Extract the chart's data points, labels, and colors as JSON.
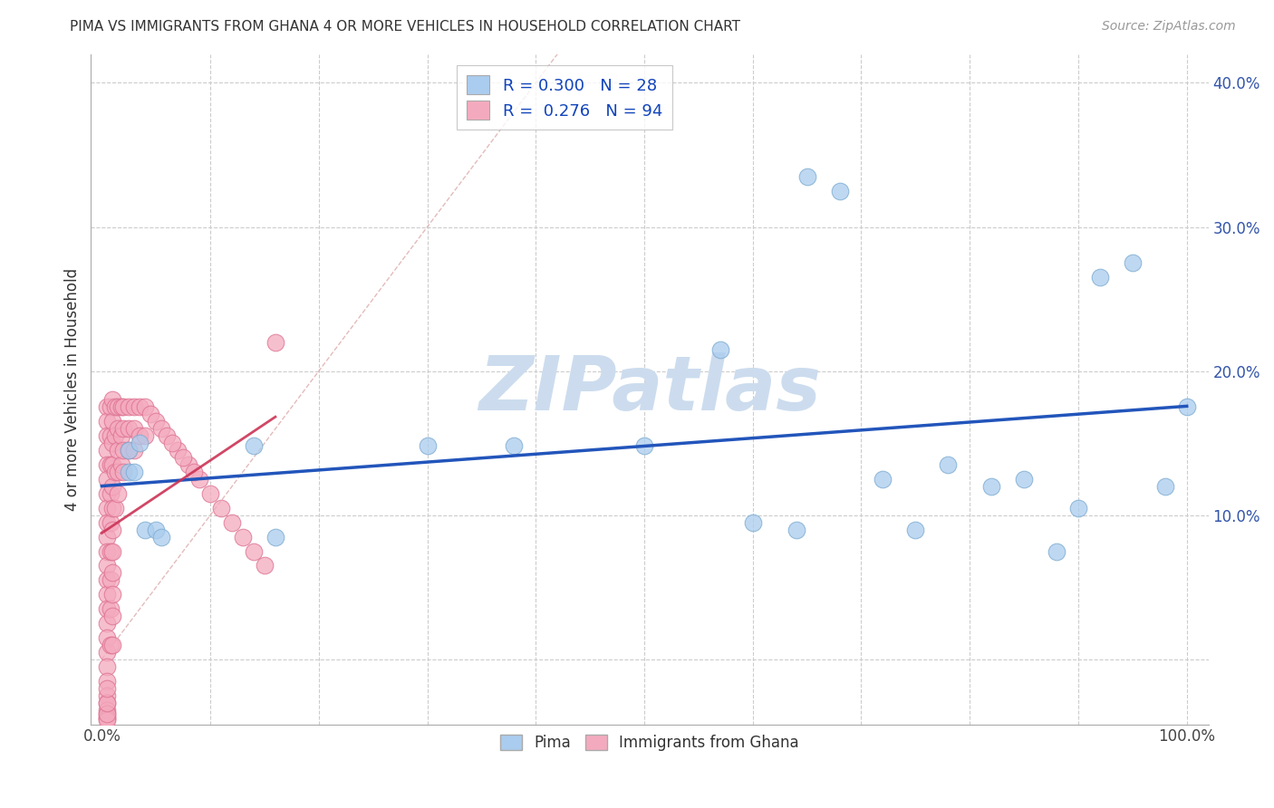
{
  "title": "PIMA VS IMMIGRANTS FROM GHANA 4 OR MORE VEHICLES IN HOUSEHOLD CORRELATION CHART",
  "source": "Source: ZipAtlas.com",
  "ylabel": "4 or more Vehicles in Household",
  "xlim": [
    -0.01,
    1.02
  ],
  "ylim": [
    -0.045,
    0.42
  ],
  "legend_R1": "0.300",
  "legend_N1": "28",
  "legend_R2": "0.276",
  "legend_N2": "94",
  "watermark": "ZIPatlas",
  "watermark_color": "#ccdcee",
  "pima_color": "#aaccee",
  "pima_edge_color": "#7aaad0",
  "ghana_color": "#f4aabe",
  "ghana_edge_color": "#dd7090",
  "trend_pima_color": "#2255bb",
  "trend_ghana_color": "#cc3355",
  "ref_line_color": "#ccaaaa",
  "background_color": "#ffffff",
  "grid_color": "#cccccc",
  "pima_x": [
    0.025,
    0.025,
    0.03,
    0.035,
    0.04,
    0.05,
    0.055,
    0.14,
    0.16,
    0.38,
    0.57,
    0.6,
    0.64,
    0.65,
    0.68,
    0.72,
    0.75,
    0.78,
    0.82,
    0.85,
    0.88,
    0.9,
    0.92,
    0.95,
    0.98,
    1.0,
    0.5,
    0.3
  ],
  "pima_y": [
    0.145,
    0.13,
    0.13,
    0.15,
    0.09,
    0.09,
    0.085,
    0.148,
    0.085,
    0.148,
    0.215,
    0.095,
    0.09,
    0.335,
    0.325,
    0.125,
    0.09,
    0.135,
    0.12,
    0.125,
    0.075,
    0.105,
    0.265,
    0.275,
    0.12,
    0.175,
    0.148,
    0.148
  ],
  "ghana_x": [
    0.005,
    0.005,
    0.005,
    0.005,
    0.005,
    0.005,
    0.005,
    0.005,
    0.005,
    0.005,
    0.005,
    0.005,
    0.005,
    0.005,
    0.005,
    0.005,
    0.005,
    0.005,
    0.005,
    0.005,
    0.005,
    0.005,
    0.005,
    0.005,
    0.005,
    0.005,
    0.005,
    0.005,
    0.005,
    0.005,
    0.008,
    0.008,
    0.008,
    0.008,
    0.008,
    0.008,
    0.008,
    0.008,
    0.008,
    0.01,
    0.01,
    0.01,
    0.01,
    0.01,
    0.01,
    0.01,
    0.01,
    0.01,
    0.01,
    0.01,
    0.01,
    0.012,
    0.012,
    0.012,
    0.012,
    0.015,
    0.015,
    0.015,
    0.015,
    0.015,
    0.018,
    0.018,
    0.018,
    0.02,
    0.02,
    0.02,
    0.02,
    0.025,
    0.025,
    0.025,
    0.03,
    0.03,
    0.03,
    0.035,
    0.035,
    0.04,
    0.04,
    0.045,
    0.05,
    0.055,
    0.06,
    0.07,
    0.08,
    0.09,
    0.1,
    0.11,
    0.12,
    0.13,
    0.14,
    0.15,
    0.065,
    0.075,
    0.085,
    0.16
  ],
  "ghana_y": [
    0.175,
    0.165,
    0.155,
    0.145,
    0.135,
    0.125,
    0.115,
    0.105,
    0.095,
    0.085,
    0.075,
    0.065,
    0.055,
    0.045,
    0.035,
    0.025,
    0.015,
    0.005,
    -0.005,
    -0.015,
    -0.025,
    -0.03,
    -0.035,
    -0.038,
    -0.04,
    -0.041,
    -0.042,
    -0.038,
    -0.03,
    -0.02,
    0.175,
    0.155,
    0.135,
    0.115,
    0.095,
    0.075,
    0.055,
    0.035,
    0.01,
    0.18,
    0.165,
    0.15,
    0.135,
    0.12,
    0.105,
    0.09,
    0.075,
    0.06,
    0.045,
    0.03,
    0.01,
    0.175,
    0.155,
    0.13,
    0.105,
    0.175,
    0.16,
    0.145,
    0.13,
    0.115,
    0.175,
    0.155,
    0.135,
    0.175,
    0.16,
    0.145,
    0.13,
    0.175,
    0.16,
    0.145,
    0.175,
    0.16,
    0.145,
    0.175,
    0.155,
    0.175,
    0.155,
    0.17,
    0.165,
    0.16,
    0.155,
    0.145,
    0.135,
    0.125,
    0.115,
    0.105,
    0.095,
    0.085,
    0.075,
    0.065,
    0.15,
    0.14,
    0.13,
    0.22
  ]
}
